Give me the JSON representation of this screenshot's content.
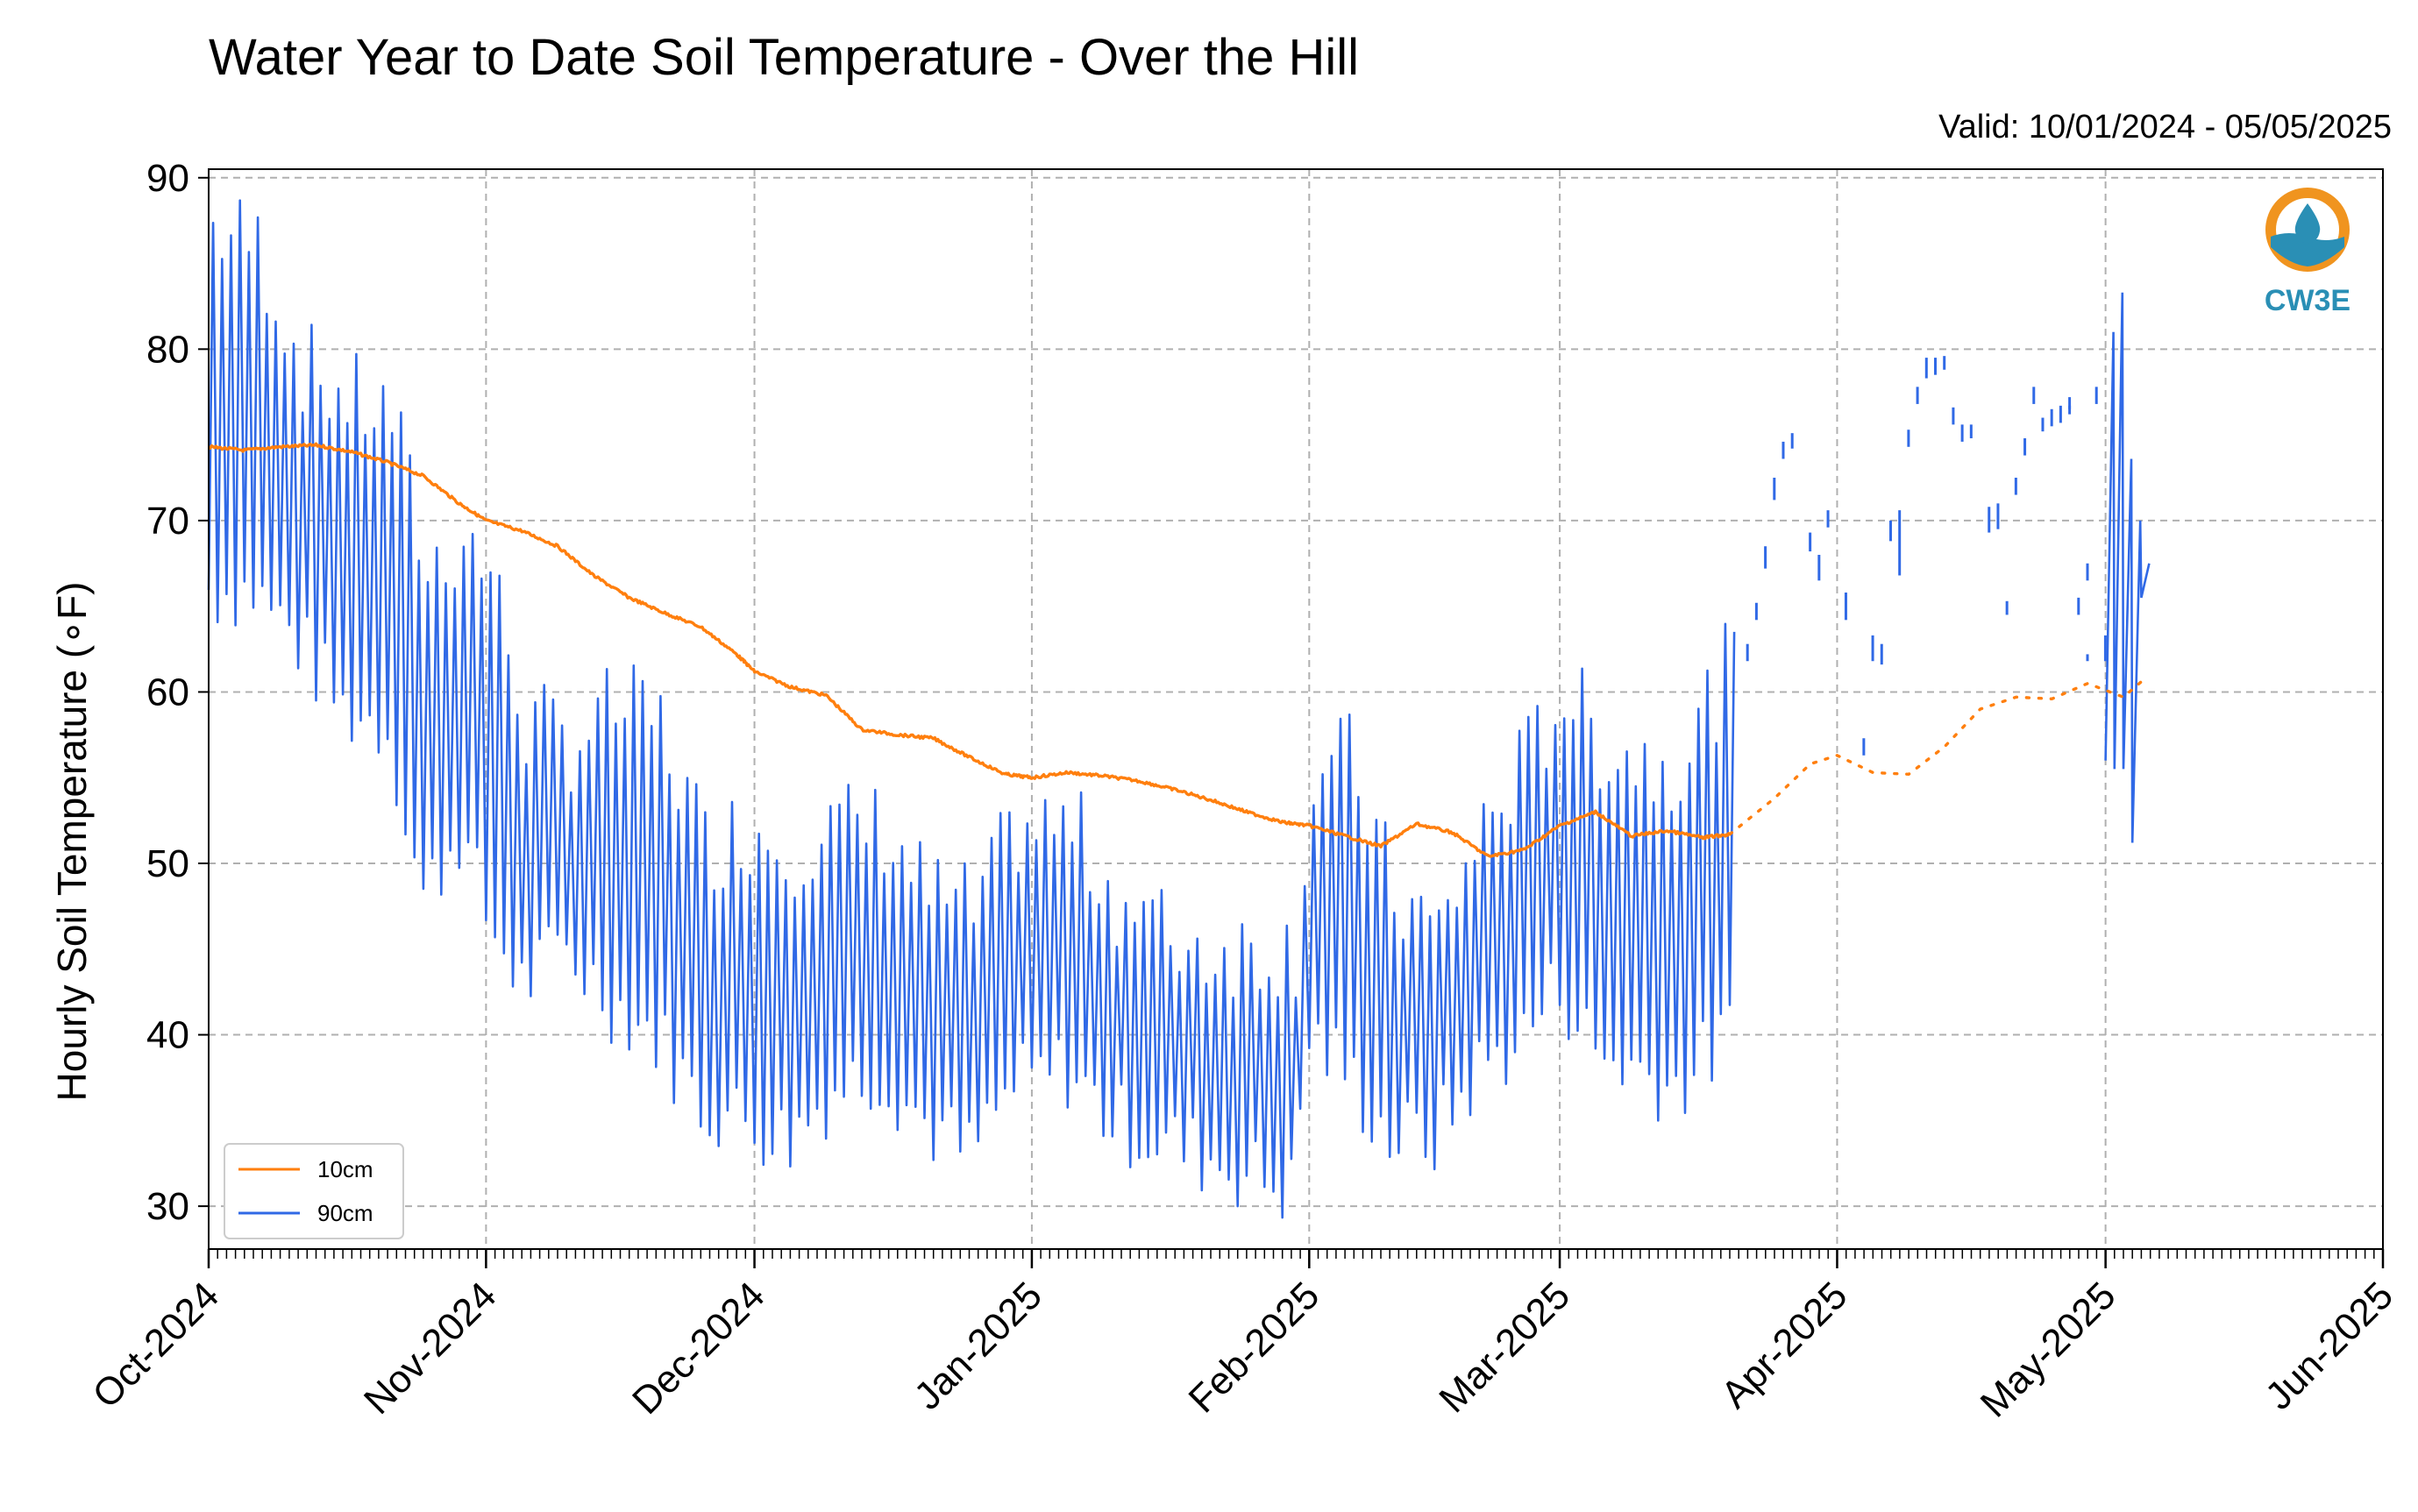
{
  "chart_data": {
    "type": "line",
    "title": "Water Year to Date Soil Temperature - Over the Hill",
    "subtitle": "Valid: 10/01/2024 - 05/05/2025",
    "ylabel": "Hourly Soil Temperature (∘F)",
    "xlabel": "",
    "ylim": [
      27.5,
      90.5
    ],
    "xlim": [
      "2024-10-01",
      "2025-06-01"
    ],
    "yticks": [
      "30",
      "40",
      "50",
      "60",
      "70",
      "80",
      "90"
    ],
    "xticks": [
      {
        "date": "2024-10-01",
        "label": "Oct-2024"
      },
      {
        "date": "2024-11-01",
        "label": "Nov-2024"
      },
      {
        "date": "2024-12-01",
        "label": "Dec-2024"
      },
      {
        "date": "2025-01-01",
        "label": "Jan-2025"
      },
      {
        "date": "2025-02-01",
        "label": "Feb-2025"
      },
      {
        "date": "2025-03-01",
        "label": "Mar-2025"
      },
      {
        "date": "2025-04-01",
        "label": "Apr-2025"
      },
      {
        "date": "2025-05-01",
        "label": "May-2025"
      },
      {
        "date": "2025-06-01",
        "label": "Jun-2025"
      }
    ],
    "grid": true,
    "legend": "lower-left",
    "series": [
      {
        "name": "10cm",
        "color": "#ff7f0e",
        "style": "solid-then-dotted",
        "points": [
          [
            "2024-10-01",
            74.3
          ],
          [
            "2024-10-05",
            74.1
          ],
          [
            "2024-10-09",
            74.3
          ],
          [
            "2024-10-13",
            74.4
          ],
          [
            "2024-10-17",
            74.0
          ],
          [
            "2024-10-21",
            73.4
          ],
          [
            "2024-10-25",
            72.6
          ],
          [
            "2024-10-29",
            71.0
          ],
          [
            "2024-11-01",
            70.0
          ],
          [
            "2024-11-05",
            69.4
          ],
          [
            "2024-11-09",
            68.5
          ],
          [
            "2024-11-13",
            66.8
          ],
          [
            "2024-11-17",
            65.5
          ],
          [
            "2024-11-21",
            64.6
          ],
          [
            "2024-11-25",
            63.8
          ],
          [
            "2024-11-29",
            62.2
          ],
          [
            "2024-12-01",
            61.2
          ],
          [
            "2024-12-05",
            60.3
          ],
          [
            "2024-12-09",
            59.8
          ],
          [
            "2024-12-13",
            57.8
          ],
          [
            "2024-12-17",
            57.5
          ],
          [
            "2024-12-21",
            57.3
          ],
          [
            "2024-12-25",
            56.2
          ],
          [
            "2024-12-29",
            55.2
          ],
          [
            "2025-01-01",
            55.0
          ],
          [
            "2025-01-05",
            55.3
          ],
          [
            "2025-01-09",
            55.1
          ],
          [
            "2025-01-13",
            54.8
          ],
          [
            "2025-01-17",
            54.3
          ],
          [
            "2025-01-21",
            53.7
          ],
          [
            "2025-01-25",
            53.0
          ],
          [
            "2025-01-29",
            52.4
          ],
          [
            "2025-02-01",
            52.2
          ],
          [
            "2025-02-05",
            51.6
          ],
          [
            "2025-02-09",
            51.0
          ],
          [
            "2025-02-13",
            52.3
          ],
          [
            "2025-02-17",
            51.8
          ],
          [
            "2025-02-21",
            50.4
          ],
          [
            "2025-02-25",
            50.8
          ],
          [
            "2025-03-01",
            52.2
          ],
          [
            "2025-03-05",
            53.0
          ],
          [
            "2025-03-09",
            51.6
          ],
          [
            "2025-03-13",
            51.9
          ],
          [
            "2025-03-17",
            51.5
          ],
          [
            "2025-03-20",
            51.7
          ]
        ],
        "dotted_points": [
          [
            "2025-03-20",
            51.7
          ],
          [
            "2025-03-25",
            53.8
          ],
          [
            "2025-03-29",
            55.8
          ],
          [
            "2025-04-01",
            56.3
          ],
          [
            "2025-04-05",
            55.3
          ],
          [
            "2025-04-09",
            55.2
          ],
          [
            "2025-04-13",
            56.8
          ],
          [
            "2025-04-17",
            59.0
          ],
          [
            "2025-04-21",
            59.7
          ],
          [
            "2025-04-25",
            59.6
          ],
          [
            "2025-04-29",
            60.5
          ],
          [
            "2025-05-03",
            59.7
          ],
          [
            "2025-05-05",
            60.6
          ]
        ]
      },
      {
        "name": "90cm",
        "color": "#3069e6",
        "style": "diurnal",
        "envelope": [
          [
            "2024-10-01",
            66,
            87
          ],
          [
            "2024-10-06",
            66,
            86
          ],
          [
            "2024-10-11",
            63,
            79
          ],
          [
            "2024-10-16",
            59,
            77
          ],
          [
            "2024-10-21",
            58,
            76
          ],
          [
            "2024-10-25",
            48,
            67
          ],
          [
            "2024-10-29",
            52,
            69
          ],
          [
            "2024-11-01",
            47,
            67
          ],
          [
            "2024-11-05",
            43,
            58
          ],
          [
            "2024-11-10",
            45,
            57
          ],
          [
            "2024-11-15",
            42,
            59
          ],
          [
            "2024-11-20",
            40,
            58
          ],
          [
            "2024-11-25",
            36,
            51
          ],
          [
            "2024-11-30",
            35,
            52
          ],
          [
            "2024-12-05",
            34,
            51
          ],
          [
            "2024-12-10",
            37,
            52
          ],
          [
            "2024-12-15",
            38,
            52
          ],
          [
            "2024-12-20",
            35,
            48
          ],
          [
            "2024-12-25",
            33,
            47
          ],
          [
            "2024-12-30",
            37,
            52
          ],
          [
            "2025-01-05",
            38,
            52
          ],
          [
            "2025-01-10",
            35,
            48
          ],
          [
            "2025-01-15",
            34,
            46
          ],
          [
            "2025-01-20",
            33,
            45
          ],
          [
            "2025-01-25",
            32,
            45
          ],
          [
            "2025-01-30",
            31,
            45
          ],
          [
            "2025-02-01",
            40,
            55
          ],
          [
            "2025-02-05",
            38,
            56
          ],
          [
            "2025-02-10",
            34,
            48
          ],
          [
            "2025-02-15",
            34,
            46
          ],
          [
            "2025-02-20",
            38,
            52
          ],
          [
            "2025-02-25",
            40,
            56
          ],
          [
            "2025-03-01",
            43,
            60
          ],
          [
            "2025-03-05",
            39,
            57
          ],
          [
            "2025-03-10",
            38,
            56
          ],
          [
            "2025-03-14",
            37,
            56
          ],
          [
            "2025-03-20",
            40,
            62
          ]
        ],
        "sparse_segments": [
          [
            "2025-03-21",
            61.8,
            62.8
          ],
          [
            "2025-03-22",
            64.2,
            65.2
          ],
          [
            "2025-03-23",
            67.2,
            68.5
          ],
          [
            "2025-03-24",
            71.2,
            72.5
          ],
          [
            "2025-03-25",
            73.6,
            74.6
          ],
          [
            "2025-03-26",
            74.2,
            75.1
          ],
          [
            "2025-03-28",
            68.2,
            69.3
          ],
          [
            "2025-03-29",
            66.5,
            68.0
          ],
          [
            "2025-03-30",
            69.6,
            70.6
          ],
          [
            "2025-04-01",
            64.2,
            65.8
          ],
          [
            "2025-04-03",
            56.3,
            57.3
          ],
          [
            "2025-04-04",
            61.8,
            63.3
          ],
          [
            "2025-04-05",
            61.6,
            62.8
          ],
          [
            "2025-04-06",
            68.8,
            70.0
          ],
          [
            "2025-04-07",
            66.8,
            70.6
          ],
          [
            "2025-04-08",
            74.3,
            75.3
          ],
          [
            "2025-04-09",
            76.8,
            77.8
          ],
          [
            "2025-04-10",
            78.3,
            79.5
          ],
          [
            "2025-04-11",
            78.5,
            79.5
          ],
          [
            "2025-04-12",
            78.8,
            79.6
          ],
          [
            "2025-04-13",
            75.6,
            76.6
          ],
          [
            "2025-04-14",
            74.6,
            75.6
          ],
          [
            "2025-04-15",
            74.8,
            75.6
          ],
          [
            "2025-04-17",
            69.3,
            70.8
          ],
          [
            "2025-04-18",
            69.5,
            71.0
          ],
          [
            "2025-04-19",
            64.5,
            65.3
          ],
          [
            "2025-04-20",
            71.5,
            72.5
          ],
          [
            "2025-04-21",
            73.8,
            74.8
          ],
          [
            "2025-04-22",
            76.8,
            77.8
          ],
          [
            "2025-04-23",
            75.2,
            76.0
          ],
          [
            "2025-04-24",
            75.5,
            76.5
          ],
          [
            "2025-04-25",
            75.7,
            76.7
          ],
          [
            "2025-04-26",
            76.2,
            77.2
          ],
          [
            "2025-04-26",
            76.5,
            76.7
          ],
          [
            "2025-04-27",
            64.5,
            65.5
          ],
          [
            "2025-04-28",
            61.8,
            62.2
          ],
          [
            "2025-04-28",
            66.5,
            67.5
          ],
          [
            "2025-04-29",
            76.8,
            77.8
          ],
          [
            "2025-04-30",
            61.8,
            63.3
          ]
        ],
        "burst": [
          [
            "2025-05-01",
            56,
            81
          ],
          [
            "2025-05-02",
            55.5,
            83.3
          ],
          [
            "2025-05-03",
            55.5,
            73.6
          ],
          [
            "2025-05-04",
            51.2,
            70.0
          ],
          [
            "2025-05-05",
            65.5,
            67.5
          ]
        ]
      }
    ]
  },
  "logo": {
    "text": "CW3E",
    "ring_color": "#f0941f",
    "wave_color": "#2a8fb5",
    "text_color": "#2a8fb5"
  }
}
